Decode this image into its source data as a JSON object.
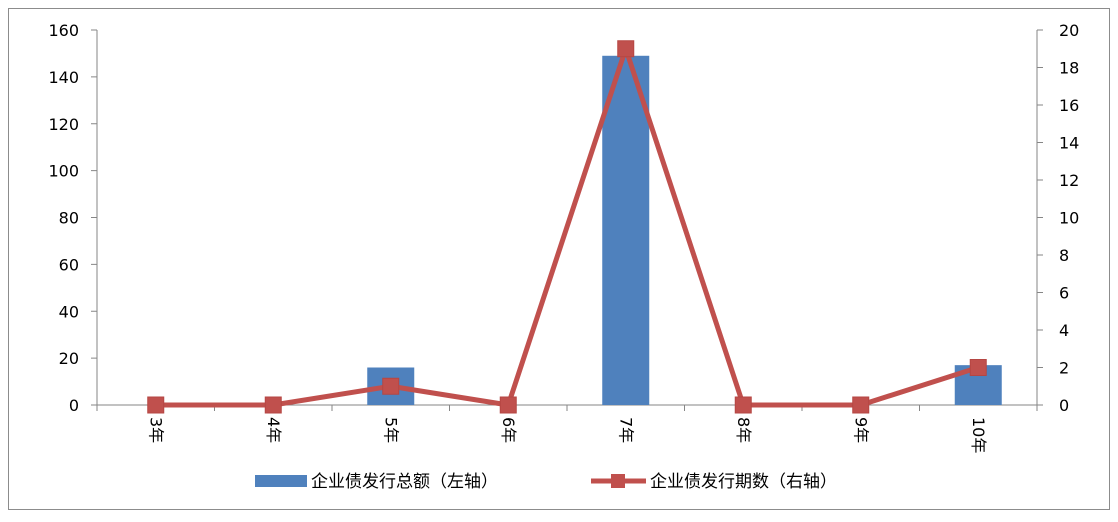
{
  "chart_data": {
    "type": "bar",
    "categories": [
      "3年",
      "4年",
      "5年",
      "6年",
      "7年",
      "8年",
      "9年",
      "10年"
    ],
    "series": [
      {
        "name": "企业债发行总额（左轴）",
        "type": "bar",
        "axis": "left",
        "color": "#4f81bd",
        "values": [
          0,
          0,
          16,
          0,
          149,
          0,
          0,
          17
        ]
      },
      {
        "name": "企业债发行期数（右轴）",
        "type": "line",
        "axis": "right",
        "color": "#c0504d",
        "marker": "square",
        "values": [
          0,
          0,
          1,
          0,
          19,
          0,
          0,
          2
        ]
      }
    ],
    "y_left": {
      "lim": [
        0,
        160
      ],
      "ticks": [
        "0",
        "20",
        "40",
        "60",
        "80",
        "100",
        "120",
        "140",
        "160"
      ]
    },
    "y_right": {
      "lim": [
        0,
        20
      ],
      "ticks": [
        "0",
        "2",
        "4",
        "6",
        "8",
        "10",
        "12",
        "14",
        "16",
        "18",
        "20"
      ]
    },
    "legend_position": "bottom",
    "grid": false,
    "x_tick_rotation": "vertical"
  }
}
